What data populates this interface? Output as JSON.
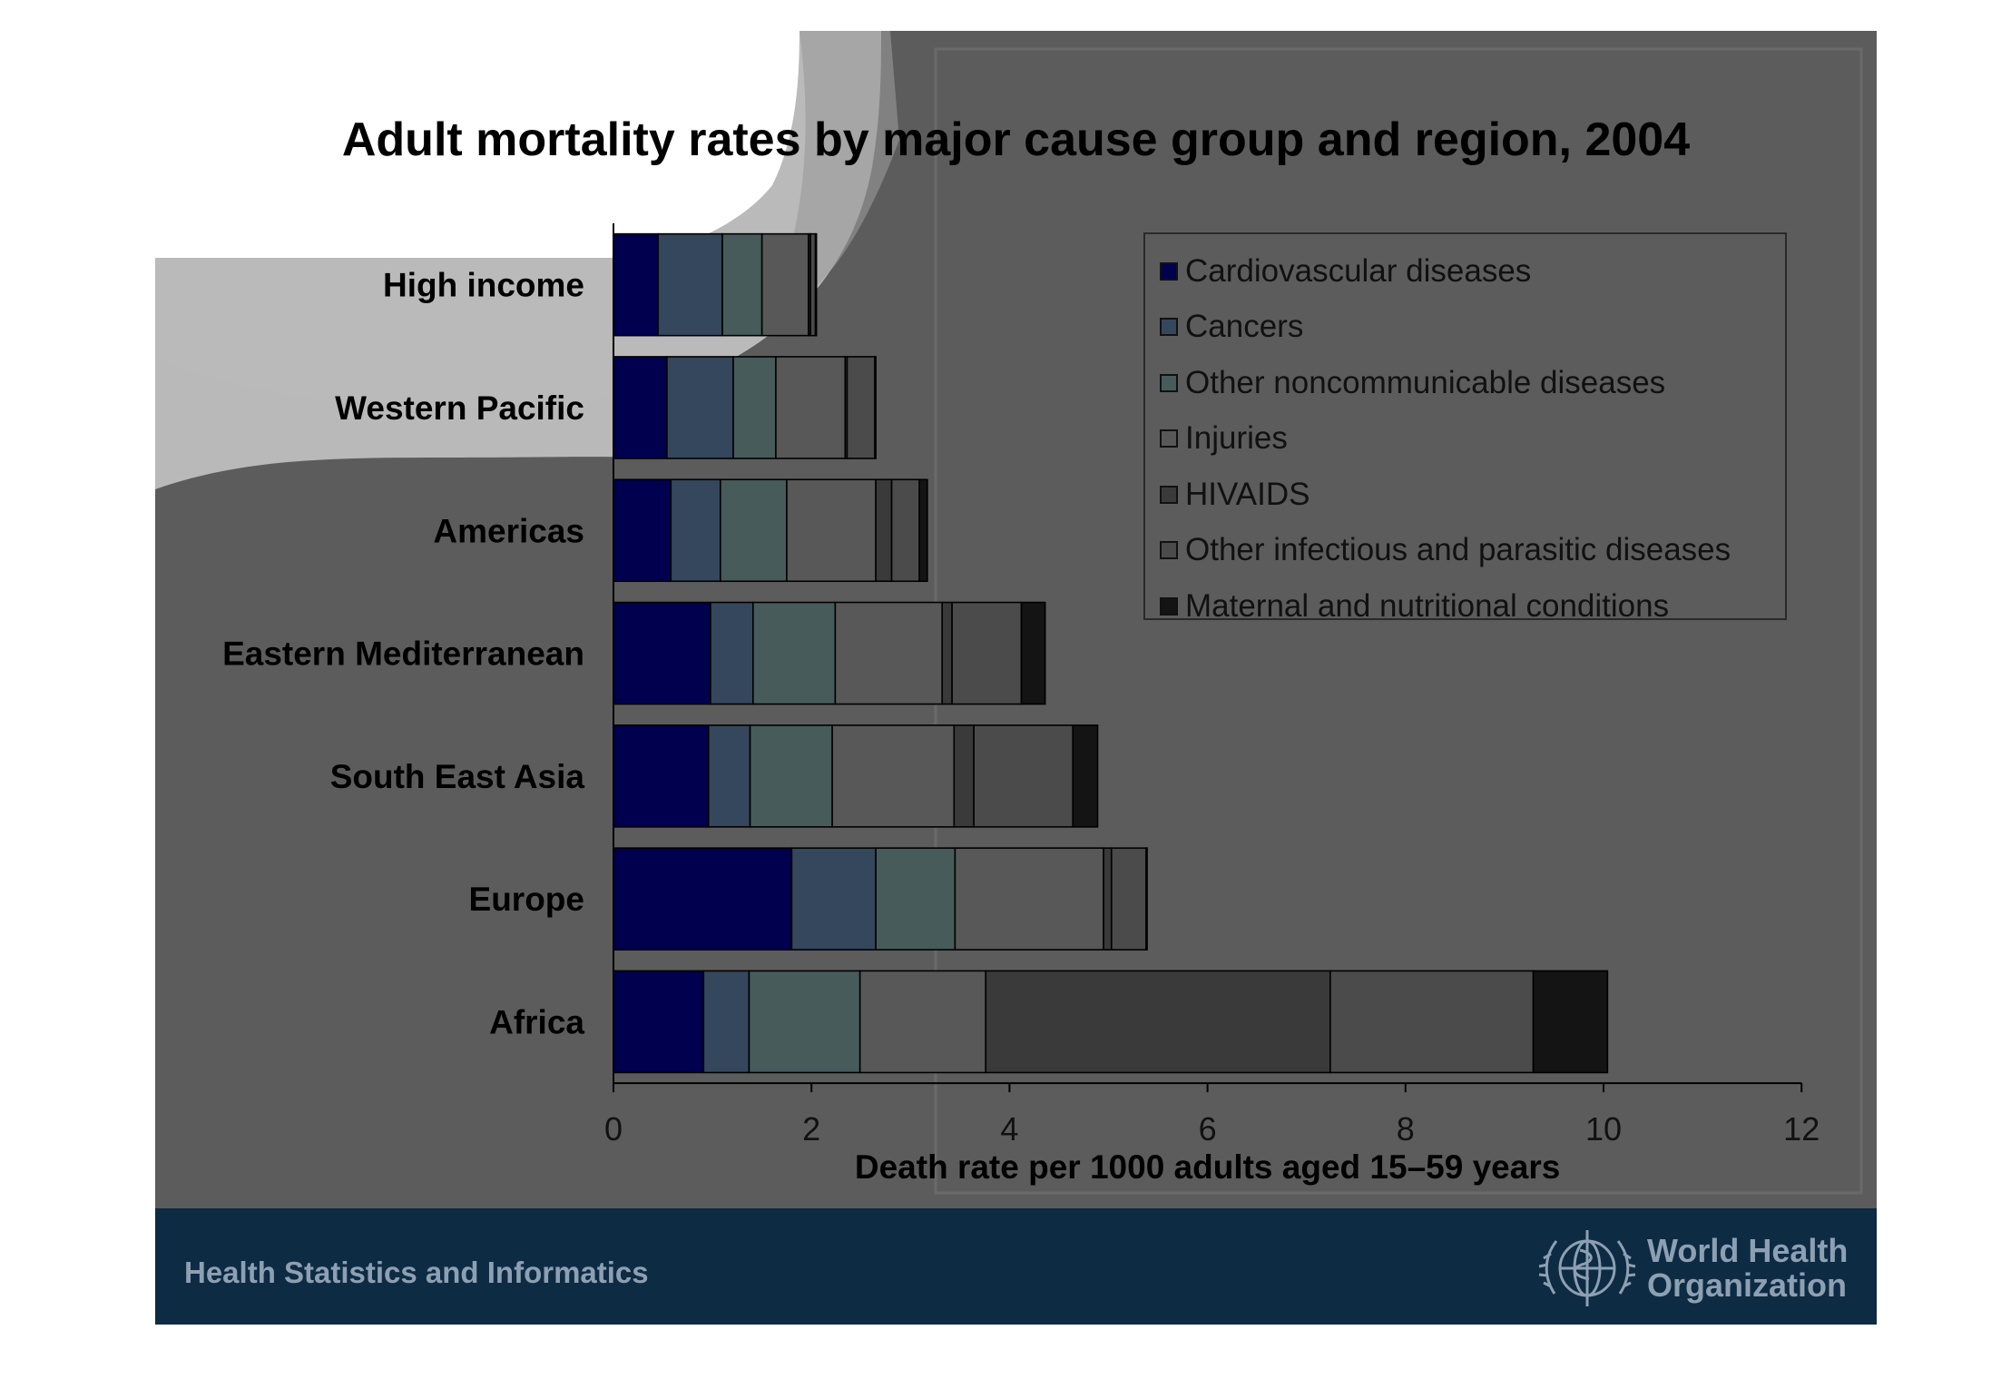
{
  "chart_data": {
    "type": "bar",
    "orientation": "horizontal",
    "stacked": true,
    "title": "Adult mortality rates by major cause group and region, 2004",
    "xlabel": "Death rate per 1000 adults aged 15–59 years",
    "ylabel": "",
    "xlim": [
      0,
      12
    ],
    "xticks": [
      0,
      2,
      4,
      6,
      8,
      10,
      12
    ],
    "categories": [
      "High income",
      "Western Pacific",
      "Americas",
      "Eastern Mediterranean",
      "South East Asia",
      "Europe",
      "Africa"
    ],
    "legend_position": "top-right",
    "grid": false,
    "series": [
      {
        "name": "Cardiovascular diseases",
        "color": "#00004f",
        "values": [
          0.45,
          0.54,
          0.58,
          0.98,
          0.96,
          1.8,
          0.91
        ]
      },
      {
        "name": "Cancers",
        "color": "#34475c",
        "values": [
          0.65,
          0.67,
          0.5,
          0.43,
          0.42,
          0.85,
          0.46
        ]
      },
      {
        "name": "Other noncommunicable diseases",
        "color": "#475b5b",
        "values": [
          0.4,
          0.43,
          0.67,
          0.83,
          0.83,
          0.8,
          1.12
        ]
      },
      {
        "name": "Injuries",
        "color": "#585858",
        "values": [
          0.47,
          0.7,
          0.9,
          1.08,
          1.23,
          1.5,
          1.27
        ]
      },
      {
        "name": "HIVAIDS",
        "color": "#3a3a3a",
        "values": [
          0.02,
          0.02,
          0.16,
          0.1,
          0.2,
          0.08,
          3.48
        ]
      },
      {
        "name": "Other infectious and parasitic diseases",
        "color": "#4b4b4b",
        "values": [
          0.05,
          0.28,
          0.28,
          0.7,
          1.0,
          0.35,
          2.05
        ]
      },
      {
        "name": "Maternal and nutritional conditions",
        "color": "#141414",
        "values": [
          0.01,
          0.01,
          0.08,
          0.24,
          0.25,
          0.01,
          0.75
        ]
      }
    ]
  },
  "footer": {
    "left_text": "Health Statistics and Informatics",
    "logo_line1": "World Health",
    "logo_line2": "Organization",
    "logo_icon": "who-emblem-icon"
  },
  "colors": {
    "slide_background": "#5c5c5c",
    "footer_background": "#0e2b44",
    "footer_text": "#8da0b2"
  }
}
